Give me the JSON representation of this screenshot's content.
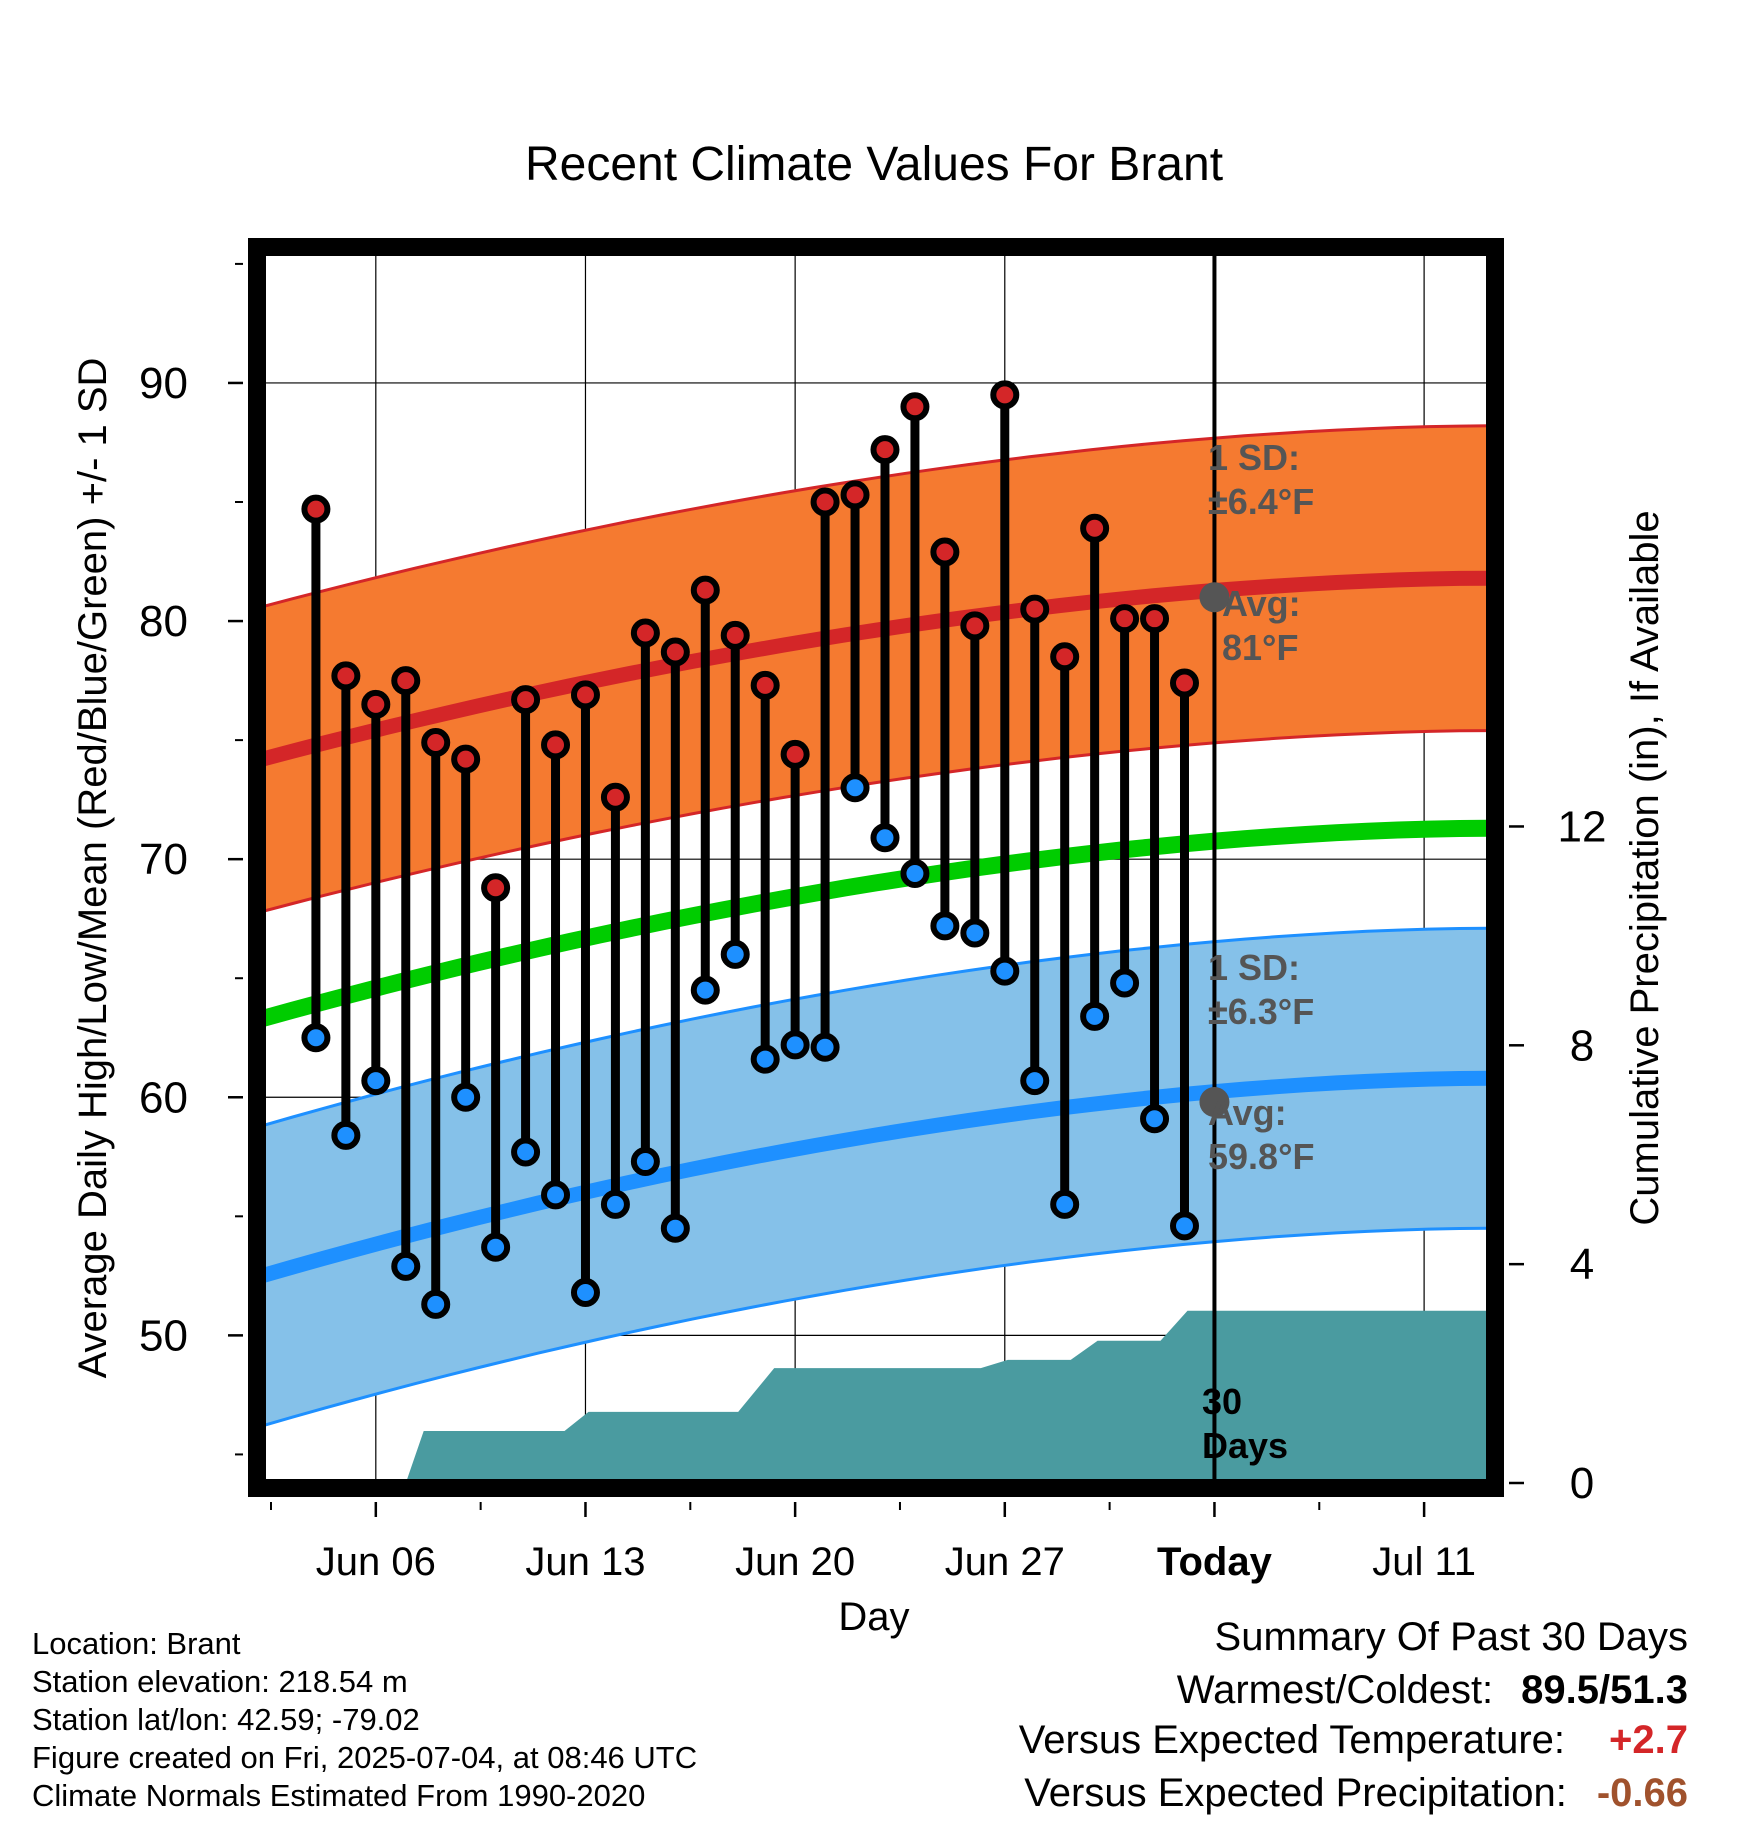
{
  "title": "Recent Climate Values For Brant",
  "colors": {
    "high_band": "#F57A30",
    "high_avg": "#D42628",
    "low_band": "#85C1E9",
    "low_avg": "#1E90FF",
    "mean_line": "#00CC00",
    "precip": "#4A9BA0",
    "high_marker": "#D42628",
    "low_marker": "#1E90FF",
    "label_gray": "#555555",
    "warm": "#D42628",
    "dry": "#A0522D"
  },
  "chart_data": {
    "type": "line",
    "title": "Recent Climate Values For Brant",
    "xlabel": "Day",
    "ylabel": "Average Daily High/Low/Mean (Red/Blue/Green) +/- 1 SD",
    "ylabel_right": "Cumulative Precipitation (in), If Available",
    "x_ticks": [
      "Jun 06",
      "Jun 13",
      "Jun 20",
      "Jun 27",
      "Today",
      "Jul 11"
    ],
    "x_tick_days": [
      6,
      13,
      20,
      27,
      34,
      41
    ],
    "y_ticks": [
      50,
      60,
      70,
      80,
      90
    ],
    "ylim": [
      43.8,
      95.5
    ],
    "y_right_ticks": [
      0,
      4,
      8,
      12
    ],
    "y_right_lim": [
      0,
      22.5
    ],
    "xlim": [
      2.2,
      43.2
    ],
    "grid": true,
    "days": [
      4,
      5,
      6,
      7,
      8,
      9,
      10,
      11,
      12,
      13,
      14,
      15,
      16,
      17,
      18,
      19,
      20,
      21,
      22,
      23,
      24,
      25,
      26,
      27,
      28,
      29,
      30,
      31,
      32,
      33
    ],
    "highs": [
      84.7,
      77.7,
      76.5,
      77.5,
      74.9,
      74.2,
      68.8,
      76.7,
      74.8,
      76.9,
      72.6,
      79.5,
      78.7,
      81.3,
      79.4,
      77.3,
      74.4,
      85.0,
      85.3,
      87.2,
      89.0,
      82.9,
      79.8,
      89.5,
      80.5,
      78.5,
      83.9,
      80.1,
      80.1,
      77.4
    ],
    "lows": [
      62.5,
      58.4,
      60.7,
      52.9,
      51.3,
      60.0,
      53.7,
      57.7,
      55.9,
      51.8,
      55.5,
      57.3,
      54.5,
      64.5,
      66.0,
      61.6,
      62.2,
      62.1,
      73.0,
      70.9,
      69.4,
      67.2,
      66.9,
      65.3,
      60.7,
      55.5,
      63.4,
      64.8,
      59.1,
      54.6
    ],
    "normal_days": [
      2.2,
      43.2
    ],
    "normal_high": [
      74.2,
      81.8
    ],
    "high_sd": 6.4,
    "normal_low": [
      52.5,
      60.8
    ],
    "low_sd": 6.3,
    "normal_mean": [
      63.3,
      71.3
    ],
    "today_day": 34,
    "today_high_avg": 81,
    "today_low_avg": 59.8,
    "precip_days": [
      7,
      7.6,
      10.2,
      12.3,
      13.1,
      15.3,
      18.1,
      19.3,
      26.2,
      27.1,
      29.2,
      30.1,
      32.2,
      33.1,
      43.2
    ],
    "precip_values": [
      0,
      0.95,
      0.95,
      0.95,
      1.3,
      1.3,
      1.3,
      2.1,
      2.1,
      2.25,
      2.25,
      2.6,
      2.6,
      3.15,
      3.15
    ],
    "annotations": {
      "high_sd_label": [
        "1 SD:",
        "±6.4°F"
      ],
      "high_avg_label": [
        "Avg:",
        "81°F"
      ],
      "low_sd_label": [
        "1 SD:",
        "±6.3°F"
      ],
      "low_avg_label": [
        "Avg:",
        "59.8°F"
      ],
      "days_label": [
        "30",
        "Days"
      ]
    }
  },
  "info": {
    "location": "Location: Brant",
    "elevation": "Station elevation: 218.54 m",
    "latlon": "Station lat/lon: 42.59; -79.02",
    "created": "Figure created on Fri, 2025-07-04, at 08:46 UTC",
    "normals": "Climate Normals Estimated From 1990-2020"
  },
  "summary": {
    "heading": "Summary Of Past 30 Days",
    "warm_cold_label": "Warmest/Coldest:",
    "warm_cold_value": "89.5/51.3",
    "temp_label": "Versus Expected Temperature:",
    "temp_value": "+2.7",
    "precip_label": "Versus Expected Precipitation:",
    "precip_value": "-0.66"
  }
}
